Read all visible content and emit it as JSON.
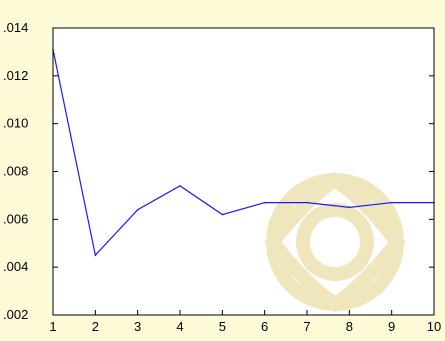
{
  "chart_data": {
    "type": "line",
    "title": "",
    "xlabel": "",
    "ylabel": "",
    "x": [
      1,
      2,
      3,
      4,
      5,
      6,
      7,
      8,
      9,
      10
    ],
    "series": [
      {
        "values": [
          0.0131,
          0.0045,
          0.0064,
          0.0074,
          0.0062,
          0.0067,
          0.0067,
          0.0065,
          0.0067,
          0.0067
        ]
      }
    ],
    "xlim": [
      1,
      10
    ],
    "ylim": [
      0.002,
      0.014
    ],
    "x_ticks": [
      "1",
      "2",
      "3",
      "4",
      "5",
      "6",
      "7",
      "8",
      "9",
      "10"
    ],
    "y_ticks": [
      {
        "value": 0.002,
        "label": ".002"
      },
      {
        "value": 0.004,
        "label": ".004"
      },
      {
        "value": 0.006,
        "label": ".006"
      },
      {
        "value": 0.008,
        "label": ".008"
      },
      {
        "value": 0.01,
        "label": ".010"
      },
      {
        "value": 0.012,
        "label": ".012"
      },
      {
        "value": 0.014,
        "label": ".014"
      }
    ],
    "grid": false,
    "legend": "none",
    "colors": {
      "background": "#fefbd8",
      "plot_area": "#ffffff",
      "line": "#1a1aff",
      "watermark": "#efe4b8"
    }
  }
}
